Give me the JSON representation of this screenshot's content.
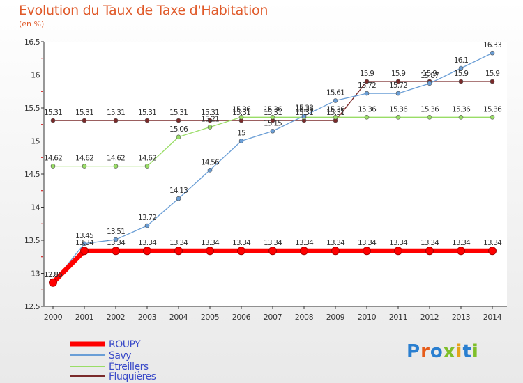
{
  "title": "Evolution du Taux de Taxe d'Habitation",
  "subtitle": "(en %)",
  "logo_text": "Proxiti",
  "chart_data": {
    "type": "line",
    "title": "Evolution du Taux de Taxe d'Habitation",
    "ylabel": "(en %)",
    "xlabel": "",
    "ylim": [
      12.5,
      16.5
    ],
    "yticks": [
      "12.5",
      "13",
      "13.5",
      "14",
      "14.5",
      "15",
      "15.5",
      "16",
      "16.5"
    ],
    "grid": false,
    "legend_position": "bottom-left",
    "categories": [
      "2000",
      "2001",
      "2002",
      "2003",
      "2004",
      "2005",
      "2006",
      "2007",
      "2008",
      "2009",
      "2010",
      "2011",
      "2012",
      "2013",
      "2014"
    ],
    "series": [
      {
        "name": "ROUPY",
        "color": "#ff0000",
        "values": [
          12.86,
          13.34,
          13.34,
          13.34,
          13.34,
          13.34,
          13.34,
          13.34,
          13.34,
          13.34,
          13.34,
          13.34,
          13.34,
          13.34,
          13.34
        ],
        "labels": [
          "12.86",
          "13.34",
          "13.34",
          "13.34",
          "13.34",
          "13.34",
          "13.34",
          "13.34",
          "13.34",
          "13.34",
          "13.34",
          "13.34",
          "13.34",
          "13.34",
          "13.34"
        ]
      },
      {
        "name": "Savy",
        "color": "#6a9ed6",
        "values": [
          12.86,
          13.45,
          13.51,
          13.72,
          14.13,
          14.56,
          15.0,
          15.15,
          15.38,
          15.61,
          15.72,
          15.72,
          15.87,
          16.1,
          16.33
        ],
        "labels": [
          "12.86",
          "13.45",
          "13.51",
          "13.72",
          "14.13",
          "14.56",
          "15",
          "15.15",
          "15.38",
          "15.61",
          "15.72",
          "15.72",
          "15.87",
          "16.1",
          "16.33"
        ]
      },
      {
        "name": "Étreillers",
        "color": "#99dd66",
        "values": [
          14.62,
          14.62,
          14.62,
          14.62,
          15.06,
          15.21,
          15.36,
          15.36,
          15.36,
          15.36,
          15.36,
          15.36,
          15.36,
          15.36,
          15.36
        ],
        "labels": [
          "14.62",
          "14.62",
          "14.62",
          "14.62",
          "15.06",
          "15.21",
          "15.36",
          "15.36",
          "15.36",
          "15.36",
          "15.36",
          "15.36",
          "15.36",
          "15.36",
          "15.36"
        ]
      },
      {
        "name": "Fluquières",
        "color": "#7a2a2a",
        "values": [
          15.31,
          15.31,
          15.31,
          15.31,
          15.31,
          15.31,
          15.31,
          15.31,
          15.31,
          15.31,
          15.9,
          15.9,
          15.9,
          15.9,
          15.9
        ],
        "labels": [
          "15.31",
          "15.31",
          "15.31",
          "15.31",
          "15.31",
          "15.31",
          "15.31",
          "15.31",
          "15.31",
          "15.31",
          "15.9",
          "15.9",
          "15.9",
          "15.9",
          "15.9"
        ]
      }
    ]
  }
}
